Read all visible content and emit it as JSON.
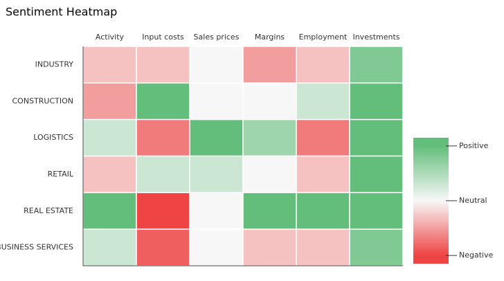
{
  "chart_data": {
    "type": "heatmap",
    "title": "Sentiment Heatmap",
    "x": [
      "Activity",
      "Input costs",
      "Sales prices",
      "Margins",
      "Employment",
      "Investments"
    ],
    "y": [
      "INDUSTRY",
      "CONSTRUCTION",
      "LOGISTICS",
      "RETAIL",
      "REAL ESTATE",
      "BUSINESS SERVICES"
    ],
    "z": [
      [
        -0.3,
        -0.3,
        0,
        -0.5,
        -0.3,
        0.8
      ],
      [
        -0.5,
        1,
        0,
        0,
        0.3,
        1
      ],
      [
        0.3,
        -0.7,
        1,
        0.6,
        -0.7,
        1
      ],
      [
        -0.3,
        0.3,
        0.3,
        0,
        -0.3,
        1
      ],
      [
        1,
        -1,
        0,
        1,
        1,
        1
      ],
      [
        0.3,
        -0.85,
        0,
        -0.3,
        -0.3,
        0.8
      ]
    ],
    "colors": [
      "#ef4444",
      "#f7f7f7",
      "#63be7b"
    ],
    "zlim": [
      -1.15,
      1.15
    ],
    "zticks": [
      {
        "value": 1,
        "label": "Positive"
      },
      {
        "value": 0,
        "label": "Neutral"
      },
      {
        "value": -1,
        "label": "Negative"
      }
    ]
  }
}
